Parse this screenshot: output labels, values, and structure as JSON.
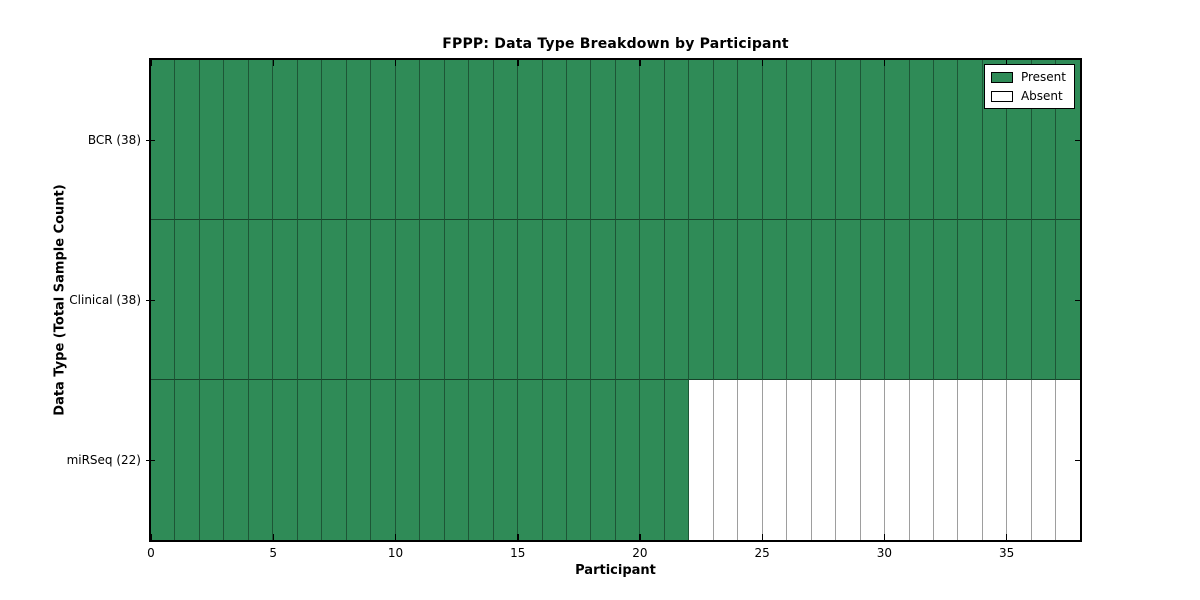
{
  "figure": {
    "title": "FPPP: Data Type Breakdown by Participant",
    "xlabel": "Participant",
    "ylabel": "Data Type (Total Sample Count)"
  },
  "legend": {
    "items": [
      {
        "label": "Present",
        "color": "#2F8B57"
      },
      {
        "label": "Absent",
        "color": "#FFFFFF"
      }
    ]
  },
  "chart_data": {
    "type": "heatmap",
    "title": "FPPP: Data Type Breakdown by Participant",
    "xlabel": "Participant",
    "ylabel": "Data Type (Total Sample Count)",
    "legend_position": "upper right",
    "legend_entries": [
      "Present",
      "Absent"
    ],
    "present_color": "#2F8B57",
    "absent_color": "#FFFFFF",
    "grid": true,
    "xlim": [
      0,
      38
    ],
    "x_ticks": [
      0,
      5,
      10,
      15,
      20,
      25,
      30,
      35
    ],
    "n_participants": 38,
    "rows": [
      {
        "label": "BCR (38)",
        "data_type": "BCR",
        "total_sample_count": 38,
        "present_count": 38,
        "absent_count": 0,
        "values": [
          1,
          1,
          1,
          1,
          1,
          1,
          1,
          1,
          1,
          1,
          1,
          1,
          1,
          1,
          1,
          1,
          1,
          1,
          1,
          1,
          1,
          1,
          1,
          1,
          1,
          1,
          1,
          1,
          1,
          1,
          1,
          1,
          1,
          1,
          1,
          1,
          1,
          1
        ]
      },
      {
        "label": "Clinical (38)",
        "data_type": "Clinical",
        "total_sample_count": 38,
        "present_count": 38,
        "absent_count": 0,
        "values": [
          1,
          1,
          1,
          1,
          1,
          1,
          1,
          1,
          1,
          1,
          1,
          1,
          1,
          1,
          1,
          1,
          1,
          1,
          1,
          1,
          1,
          1,
          1,
          1,
          1,
          1,
          1,
          1,
          1,
          1,
          1,
          1,
          1,
          1,
          1,
          1,
          1,
          1
        ]
      },
      {
        "label": "miRSeq (22)",
        "data_type": "miRSeq",
        "total_sample_count": 22,
        "present_count": 22,
        "absent_count": 16,
        "values": [
          1,
          1,
          1,
          1,
          1,
          1,
          1,
          1,
          1,
          1,
          1,
          1,
          1,
          1,
          1,
          1,
          1,
          1,
          1,
          1,
          1,
          1,
          0,
          0,
          0,
          0,
          0,
          0,
          0,
          0,
          0,
          0,
          0,
          0,
          0,
          0,
          0,
          0
        ]
      }
    ]
  }
}
